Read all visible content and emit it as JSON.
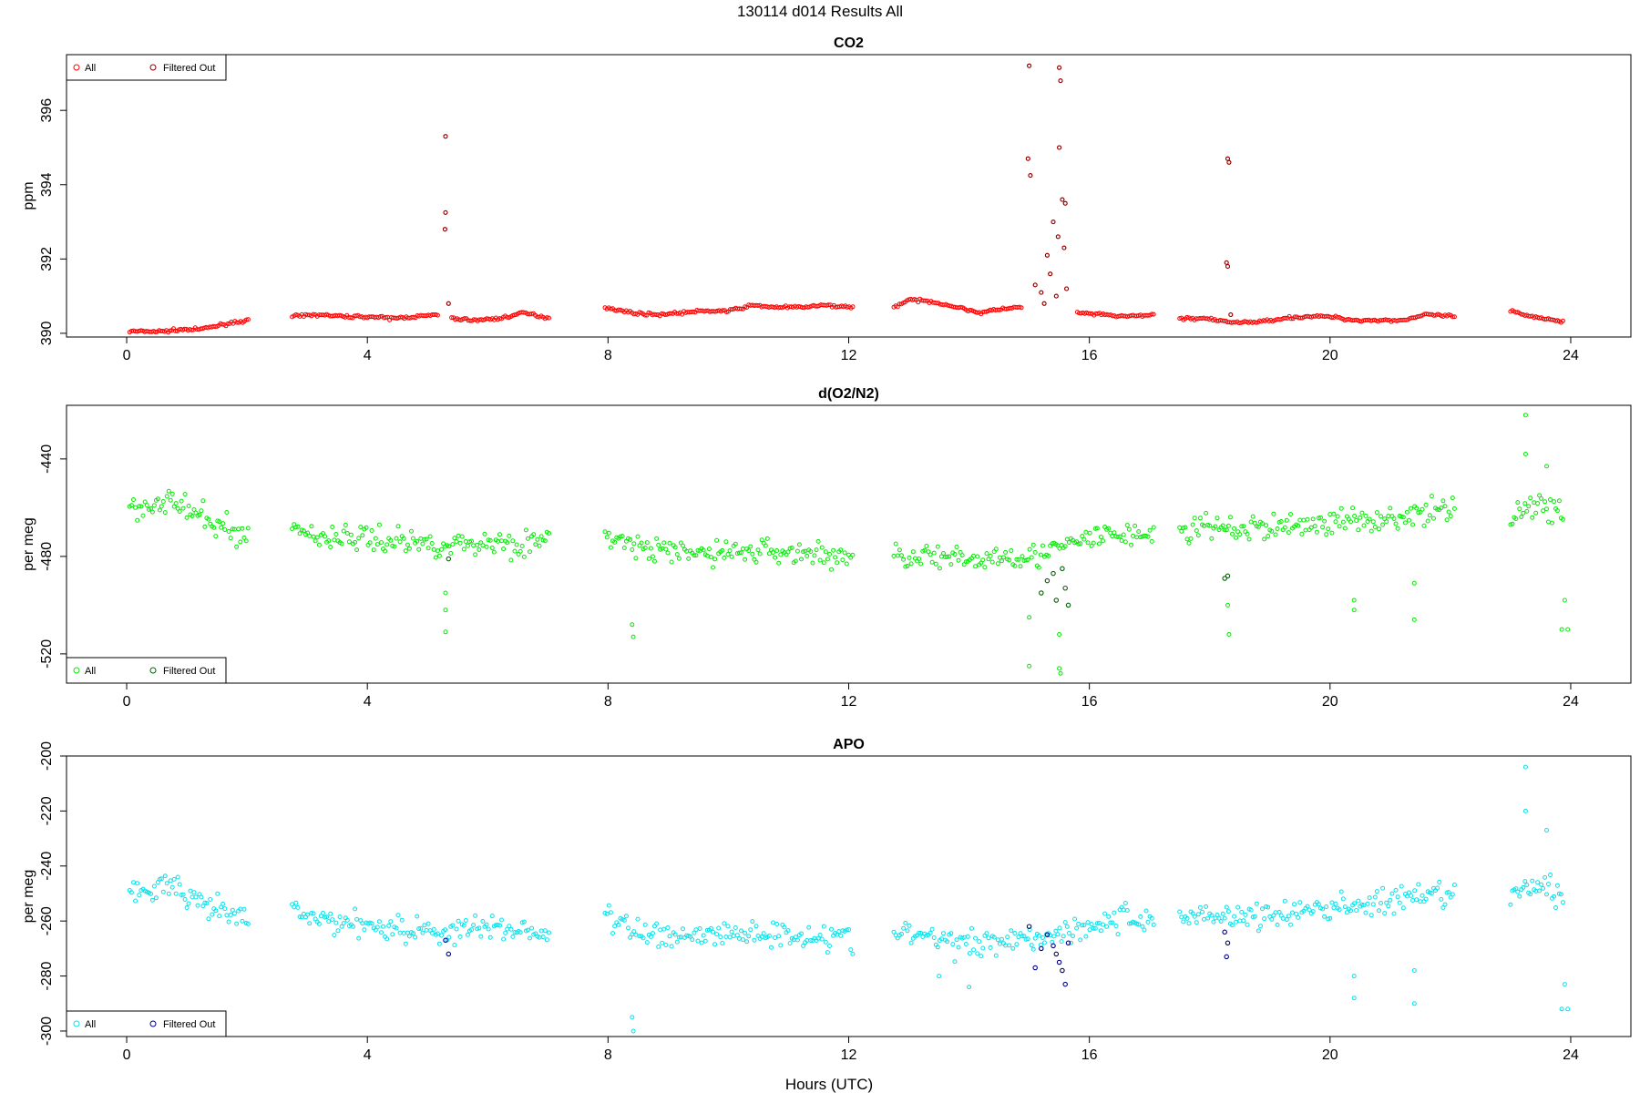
{
  "page": {
    "title": "130114   d014   Results All"
  },
  "xaxis": {
    "label": "Hours (UTC)",
    "ticks": [
      0,
      4,
      8,
      12,
      16,
      20,
      24
    ],
    "range": [
      -1,
      25
    ]
  },
  "chart_data": [
    {
      "type": "scatter",
      "title": "CO2",
      "ylabel": "ppm",
      "ylim": [
        389.9,
        397.5
      ],
      "yticks": [
        390,
        392,
        394,
        396
      ],
      "legend": {
        "position": "top-left",
        "entries": [
          "All",
          "Filtered Out"
        ]
      },
      "colors": {
        "all": "#ff0000",
        "filtered": "#8b0000"
      },
      "series": [
        {
          "name": "All",
          "segments": [
            {
              "x": [
                0.05,
                0.3,
                0.6,
                0.9,
                1.2,
                1.5,
                1.8,
                2.05
              ],
              "y": [
                390.05,
                390.05,
                390.05,
                390.1,
                390.1,
                390.2,
                390.3,
                390.35
              ]
            },
            {
              "x": [
                2.75,
                3.2,
                3.6,
                4.0,
                4.4,
                4.8,
                5.2
              ],
              "y": [
                390.45,
                390.5,
                390.45,
                390.45,
                390.4,
                390.45,
                390.5
              ]
            },
            {
              "x": [
                5.4,
                5.8,
                6.2,
                6.6,
                7.05
              ],
              "y": [
                390.4,
                390.35,
                390.4,
                390.55,
                390.4
              ]
            },
            {
              "x": [
                7.95,
                8.4,
                8.8,
                9.2,
                9.6,
                10.0,
                10.4,
                10.8,
                11.2,
                11.6,
                12.1
              ],
              "y": [
                390.7,
                390.55,
                390.5,
                390.55,
                390.6,
                390.6,
                390.75,
                390.7,
                390.7,
                390.75,
                390.7
              ]
            },
            {
              "x": [
                12.75,
                13.0,
                13.4,
                13.8,
                14.2,
                14.5,
                14.9
              ],
              "y": [
                390.7,
                390.9,
                390.85,
                390.7,
                390.55,
                390.65,
                390.7
              ]
            },
            {
              "x": [
                15.8,
                16.2,
                16.6,
                17.1
              ],
              "y": [
                390.55,
                390.5,
                390.45,
                390.5
              ]
            },
            {
              "x": [
                17.5,
                17.9,
                18.3,
                18.8,
                19.2,
                19.6,
                20.0,
                20.4,
                20.8,
                21.2,
                21.6,
                22.1
              ],
              "y": [
                390.4,
                390.4,
                390.3,
                390.3,
                390.4,
                390.45,
                390.45,
                390.35,
                390.35,
                390.35,
                390.5,
                390.45
              ]
            },
            {
              "x": [
                23.0,
                23.3,
                23.6,
                23.9
              ],
              "y": [
                390.6,
                390.45,
                390.4,
                390.3
              ]
            }
          ],
          "points": [
            {
              "x": 5.3,
              "y": 395.3
            },
            {
              "x": 5.3,
              "y": 393.25
            },
            {
              "x": 5.29,
              "y": 392.8
            },
            {
              "x": 5.35,
              "y": 390.8
            },
            {
              "x": 15.0,
              "y": 397.2
            },
            {
              "x": 15.5,
              "y": 397.15
            },
            {
              "x": 15.52,
              "y": 396.8
            },
            {
              "x": 14.98,
              "y": 394.7
            },
            {
              "x": 15.02,
              "y": 394.25
            },
            {
              "x": 15.5,
              "y": 395.0
            },
            {
              "x": 15.55,
              "y": 393.6
            },
            {
              "x": 15.6,
              "y": 393.5
            },
            {
              "x": 15.4,
              "y": 393.0
            },
            {
              "x": 15.48,
              "y": 392.6
            },
            {
              "x": 15.3,
              "y": 392.1
            },
            {
              "x": 15.58,
              "y": 392.3
            },
            {
              "x": 15.35,
              "y": 391.6
            },
            {
              "x": 15.2,
              "y": 391.1
            },
            {
              "x": 15.62,
              "y": 391.2
            },
            {
              "x": 15.1,
              "y": 391.3
            },
            {
              "x": 15.45,
              "y": 391.0
            },
            {
              "x": 15.25,
              "y": 390.8
            },
            {
              "x": 18.3,
              "y": 394.7
            },
            {
              "x": 18.32,
              "y": 394.6
            },
            {
              "x": 18.28,
              "y": 391.9
            },
            {
              "x": 18.3,
              "y": 391.8
            },
            {
              "x": 18.35,
              "y": 390.5
            }
          ]
        }
      ]
    },
    {
      "type": "scatter",
      "title": "d(O2/N2)",
      "ylabel": "per meg",
      "ylim": [
        -532,
        -418
      ],
      "yticks": [
        -440,
        -480,
        -520
      ],
      "legend": {
        "position": "bottom-left",
        "entries": [
          "All",
          "Filtered Out"
        ]
      },
      "colors": {
        "all": "#00ee00",
        "filtered": "#006400"
      },
      "series": [
        {
          "name": "All",
          "segments": [
            {
              "x": [
                0.05,
                0.4,
                0.7,
                1.0,
                1.3,
                1.6,
                2.05
              ],
              "y": [
                -460,
                -458,
                -457,
                -461,
                -465,
                -468,
                -472
              ]
            },
            {
              "x": [
                2.75,
                3.2,
                3.7,
                4.2,
                4.7,
                5.2,
                5.7,
                6.2,
                6.7,
                7.05
              ],
              "y": [
                -468,
                -472,
                -472,
                -473,
                -474,
                -475,
                -475,
                -474,
                -475,
                -474
              ]
            },
            {
              "x": [
                7.95,
                8.4,
                8.9,
                9.4,
                9.9,
                10.4,
                10.9,
                11.4,
                11.9,
                12.1
              ],
              "y": [
                -470,
                -476,
                -478,
                -479,
                -478,
                -478,
                -478,
                -479,
                -480,
                -481
              ]
            },
            {
              "x": [
                12.75,
                13.2,
                13.7,
                14.2,
                14.7,
                15.1,
                15.6,
                16.1,
                16.6,
                17.1
              ],
              "y": [
                -480,
                -479,
                -482,
                -481,
                -479,
                -480,
                -476,
                -472,
                -471,
                -471
              ]
            },
            {
              "x": [
                17.5,
                18.0,
                18.5,
                19.0,
                19.5,
                20.0,
                20.5,
                21.0,
                21.5,
                22.1
              ],
              "y": [
                -470,
                -468,
                -469,
                -468,
                -467,
                -466,
                -465,
                -464,
                -463,
                -460
              ]
            },
            {
              "x": [
                23.0,
                23.3,
                23.6,
                23.9
              ],
              "y": [
                -462,
                -460,
                -459,
                -463
              ]
            }
          ],
          "points": [
            {
              "x": 23.25,
              "y": -422
            },
            {
              "x": 23.25,
              "y": -438
            },
            {
              "x": 23.6,
              "y": -443
            },
            {
              "x": 23.9,
              "y": -498
            },
            {
              "x": 23.95,
              "y": -510
            },
            {
              "x": 23.85,
              "y": -510
            },
            {
              "x": 8.4,
              "y": -508
            },
            {
              "x": 8.42,
              "y": -513
            },
            {
              "x": 20.4,
              "y": -498
            },
            {
              "x": 20.4,
              "y": -502
            },
            {
              "x": 21.4,
              "y": -506
            },
            {
              "x": 21.4,
              "y": -491
            },
            {
              "x": 5.3,
              "y": -495
            },
            {
              "x": 5.3,
              "y": -502
            },
            {
              "x": 5.3,
              "y": -511
            },
            {
              "x": 18.3,
              "y": -500
            },
            {
              "x": 18.32,
              "y": -512
            },
            {
              "x": 15.0,
              "y": -525
            },
            {
              "x": 15.5,
              "y": -526
            },
            {
              "x": 15.52,
              "y": -528
            },
            {
              "x": 15.0,
              "y": -505
            },
            {
              "x": 15.5,
              "y": -512
            }
          ]
        },
        {
          "name": "Filtered Out",
          "points": [
            {
              "x": 15.3,
              "y": -490
            },
            {
              "x": 15.4,
              "y": -487
            },
            {
              "x": 15.55,
              "y": -485
            },
            {
              "x": 15.6,
              "y": -493
            },
            {
              "x": 15.45,
              "y": -498
            },
            {
              "x": 15.2,
              "y": -495
            },
            {
              "x": 15.65,
              "y": -500
            },
            {
              "x": 18.25,
              "y": -489
            },
            {
              "x": 18.3,
              "y": -488
            },
            {
              "x": 5.35,
              "y": -481
            }
          ]
        }
      ]
    },
    {
      "type": "scatter",
      "title": "APO",
      "ylabel": "per meg",
      "ylim": [
        -302,
        -200
      ],
      "yticks": [
        -200,
        -220,
        -240,
        -260,
        -280,
        -300
      ],
      "legend": {
        "position": "bottom-left",
        "entries": [
          "All",
          "Filtered Out"
        ]
      },
      "colors": {
        "all": "#00e5ee",
        "filtered": "#00008b"
      },
      "series": [
        {
          "name": "All",
          "segments": [
            {
              "x": [
                0.05,
                0.4,
                0.7,
                1.0,
                1.3,
                1.6,
                2.05
              ],
              "y": [
                -248,
                -250,
                -246,
                -252,
                -255,
                -257,
                -260
              ]
            },
            {
              "x": [
                2.75,
                3.2,
                3.7,
                4.2,
                4.7,
                5.2,
                5.7,
                6.2,
                6.7,
                7.05
              ],
              "y": [
                -256,
                -260,
                -260,
                -262,
                -263,
                -264,
                -263,
                -262,
                -264,
                -264
              ]
            },
            {
              "x": [
                7.95,
                8.4,
                8.9,
                9.4,
                9.9,
                10.4,
                10.9,
                11.4,
                11.9,
                12.1
              ],
              "y": [
                -258,
                -264,
                -265,
                -265,
                -265,
                -264,
                -265,
                -265,
                -266,
                -267
              ]
            },
            {
              "x": [
                12.75,
                13.2,
                13.7,
                14.2,
                14.7,
                15.1,
                15.6,
                16.1,
                16.6,
                17.1
              ],
              "y": [
                -265,
                -265,
                -268,
                -268,
                -266,
                -266,
                -264,
                -261,
                -259,
                -260
              ]
            },
            {
              "x": [
                17.5,
                18.0,
                18.5,
                19.0,
                19.5,
                20.0,
                20.5,
                21.0,
                21.5,
                22.1
              ],
              "y": [
                -258,
                -258,
                -258,
                -258,
                -257,
                -255,
                -254,
                -253,
                -252,
                -250
              ]
            },
            {
              "x": [
                23.0,
                23.3,
                23.6,
                23.9
              ],
              "y": [
                -250,
                -249,
                -247,
                -252
              ]
            }
          ],
          "points": [
            {
              "x": 23.25,
              "y": -204
            },
            {
              "x": 23.25,
              "y": -220
            },
            {
              "x": 23.6,
              "y": -227
            },
            {
              "x": 23.9,
              "y": -283
            },
            {
              "x": 23.95,
              "y": -292
            },
            {
              "x": 23.85,
              "y": -292
            },
            {
              "x": 8.4,
              "y": -295
            },
            {
              "x": 8.42,
              "y": -300
            },
            {
              "x": 20.4,
              "y": -280
            },
            {
              "x": 20.4,
              "y": -288
            },
            {
              "x": 21.4,
              "y": -290
            },
            {
              "x": 21.4,
              "y": -278
            },
            {
              "x": 14.0,
              "y": -284
            },
            {
              "x": 13.5,
              "y": -280
            }
          ]
        },
        {
          "name": "Filtered Out",
          "points": [
            {
              "x": 15.0,
              "y": -262
            },
            {
              "x": 15.3,
              "y": -265
            },
            {
              "x": 15.4,
              "y": -269
            },
            {
              "x": 15.5,
              "y": -275
            },
            {
              "x": 15.55,
              "y": -278
            },
            {
              "x": 15.6,
              "y": -283
            },
            {
              "x": 15.45,
              "y": -272
            },
            {
              "x": 15.2,
              "y": -270
            },
            {
              "x": 15.65,
              "y": -268
            },
            {
              "x": 15.1,
              "y": -277
            },
            {
              "x": 18.25,
              "y": -264
            },
            {
              "x": 18.3,
              "y": -268
            },
            {
              "x": 18.28,
              "y": -273
            },
            {
              "x": 5.3,
              "y": -267
            },
            {
              "x": 5.35,
              "y": -272
            }
          ]
        }
      ]
    }
  ]
}
